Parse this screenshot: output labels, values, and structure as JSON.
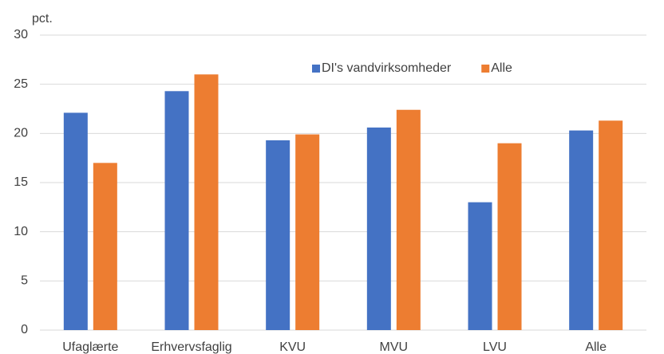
{
  "chart_data": {
    "type": "bar",
    "y_label": "pct.",
    "categories": [
      "Ufaglærte",
      "Erhvervsfaglig",
      "KVU",
      "MVU",
      "LVU",
      "Alle"
    ],
    "series": [
      {
        "name": "DI's vandvirksomheder",
        "color": "#4472c4",
        "values": [
          22.1,
          24.3,
          19.3,
          20.6,
          13.0,
          20.3
        ]
      },
      {
        "name": "Alle",
        "color": "#ed7d31",
        "values": [
          17.0,
          26.0,
          19.9,
          22.4,
          19.0,
          21.3
        ]
      }
    ],
    "ylim": [
      0,
      30
    ],
    "yticks": [
      0,
      5,
      10,
      15,
      20,
      25,
      30
    ],
    "grid": true,
    "legend": "top"
  }
}
